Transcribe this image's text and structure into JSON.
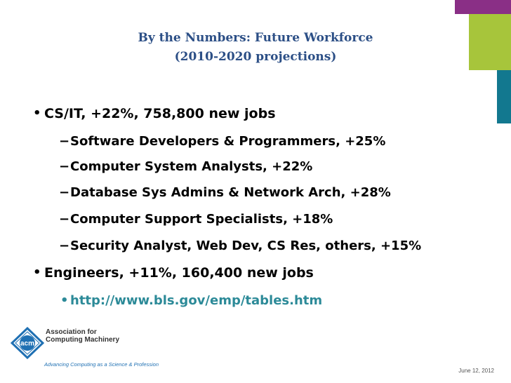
{
  "title": {
    "line1": "By the Numbers:  Future Workforce",
    "line2": "(2010-2020 projections)"
  },
  "bullets": [
    {
      "text": "CS/IT, +22%, 758,800 new jobs",
      "subitems": [
        "Software Developers & Programmers, +25%",
        "Computer System Analysts, +22%",
        "Database Sys Admins & Network Arch, +28%",
        "Computer Support Specialists, +18%",
        "Security Analyst, Web Dev, CS Res, others, +15%"
      ]
    },
    {
      "text": "Engineers, +11%, 160,400 new jobs",
      "subitems": [
        "http://www.bls.gov/emp/tables.htm"
      ]
    }
  ],
  "bullet_glyph": "•",
  "dash_glyph": "−",
  "logo": {
    "mark": "acm",
    "name_line1": "Association for",
    "name_line2": "Computing Machinery",
    "tagline": "Advancing Computing as a Science & Profession"
  },
  "date": "June 12, 2012",
  "colors": {
    "title": "#2c4f86",
    "link": "#2c8a98",
    "purple": "#8a2f86",
    "green": "#a7c53b",
    "teal": "#12788f"
  }
}
